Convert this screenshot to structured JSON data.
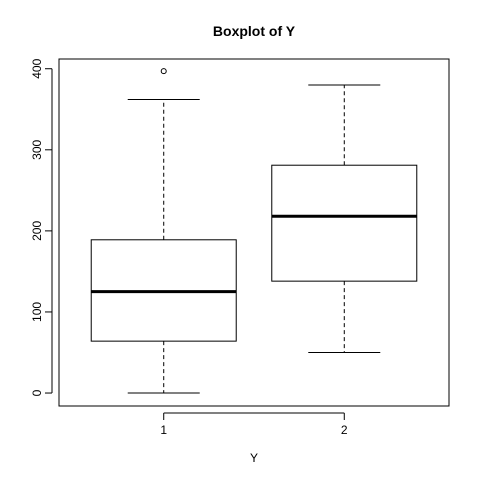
{
  "chart_data": {
    "type": "boxplot",
    "title": "Boxplot of Y",
    "xlabel": "Y",
    "ylabel": "",
    "ylim": [
      -16,
      412
    ],
    "categories": [
      "1",
      "2"
    ],
    "y_ticks": [
      0,
      100,
      200,
      300,
      400
    ],
    "boxes": [
      {
        "category": "1",
        "whisker_low": 0,
        "q1": 64,
        "median": 125,
        "q3": 189,
        "whisker_high": 362,
        "outliers": [
          397
        ]
      },
      {
        "category": "2",
        "whisker_low": 50,
        "q1": 138,
        "median": 218,
        "q3": 281,
        "whisker_high": 380,
        "outliers": []
      }
    ],
    "grid": false,
    "legend": "none"
  }
}
